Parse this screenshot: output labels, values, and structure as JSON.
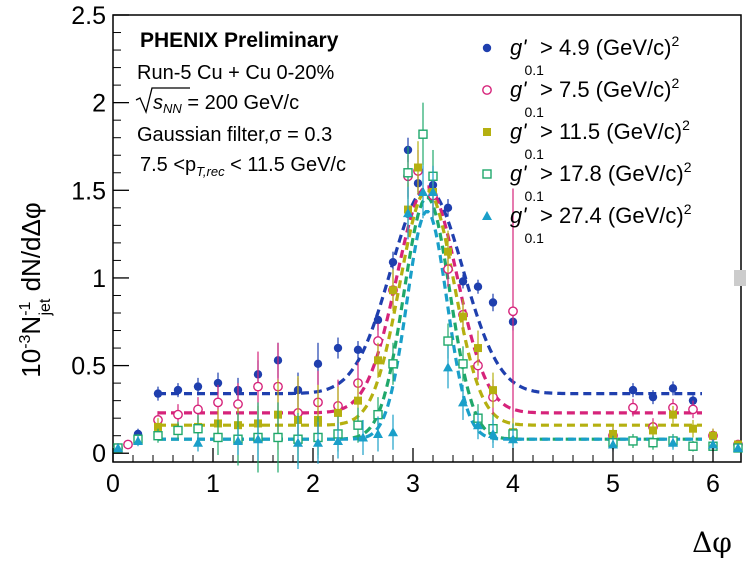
{
  "chart_data": {
    "type": "scatter",
    "ylabel": "10^-3 N_jet^-1 dN/dΔφ",
    "xlabel": "Δφ",
    "xlim": [
      0,
      6.28
    ],
    "ylim": [
      -0.05,
      2.5
    ],
    "x_ticks": [
      "0",
      "1",
      "2",
      "3",
      "4",
      "5",
      "6"
    ],
    "y_ticks": [
      "0",
      "0.5",
      "1",
      "1.5",
      "2",
      "2.5"
    ],
    "grid": false,
    "legend_position": "top-right",
    "annotations": {
      "title": "PHENIX Preliminary",
      "title_color": "#cc1a80",
      "line1": "Run-5 Cu + Cu 0-20%",
      "line2_sqrt": "s",
      "line2_sub": "NN",
      "line2_rest": " = 200 GeV/c",
      "line3": "Gaussian filter,σ = 0.3",
      "line4_pre": "7.5 <p",
      "line4_sub": "T,rec",
      "line4_post": " < 11.5 GeV/c"
    },
    "series": [
      {
        "name": "g'_0.1 > 4.9 (GeV/c)^2",
        "legend_g": "g",
        "legend_sub": "0.1",
        "legend_rest": " > 4.9 (GeV/c)",
        "legend_sup": "2",
        "color": "#1f3fae",
        "marker": "circle-filled",
        "x": [
          0.05,
          0.15,
          0.25,
          0.45,
          0.65,
          0.85,
          1.05,
          1.25,
          1.45,
          1.65,
          1.85,
          2.05,
          2.25,
          2.45,
          2.65,
          2.8,
          2.95,
          3.05,
          3.2,
          3.35,
          3.5,
          3.65,
          3.8,
          4.0,
          5.0,
          5.2,
          5.4,
          5.6,
          5.8,
          6.0,
          6.25
        ],
        "y": [
          0.03,
          0.05,
          0.11,
          0.34,
          0.36,
          0.38,
          0.4,
          0.36,
          0.45,
          0.53,
          0.36,
          0.51,
          0.6,
          0.59,
          0.76,
          1.09,
          1.73,
          1.54,
          1.53,
          1.4,
          0.98,
          0.95,
          0.86,
          0.75,
          0.1,
          0.36,
          0.32,
          0.37,
          0.3,
          0.1,
          0.05
        ],
        "err": [
          0.02,
          0.02,
          0.03,
          0.04,
          0.04,
          0.05,
          0.06,
          0.07,
          0.08,
          0.1,
          0.1,
          0.12,
          0.06,
          0.05,
          0.06,
          0.06,
          0.07,
          0.06,
          0.06,
          0.05,
          0.04,
          0.04,
          0.05,
          0.05,
          0.04,
          0.04,
          0.04,
          0.04,
          0.03,
          0.03,
          0.02
        ],
        "fit": {
          "base": 0.34,
          "amp": 1.17,
          "mu": 3.14,
          "sigma": 0.36
        }
      },
      {
        "name": "g'_0.1 > 7.5 (GeV/c)^2",
        "legend_g": "g",
        "legend_sub": "0.1",
        "legend_rest": " > 7.5 (GeV/c)",
        "legend_sup": "2",
        "color": "#d6237a",
        "marker": "circle-open",
        "x": [
          0.05,
          0.15,
          0.45,
          0.65,
          0.85,
          1.05,
          1.25,
          1.45,
          1.65,
          1.85,
          2.05,
          2.25,
          2.45,
          2.65,
          2.8,
          2.95,
          3.05,
          3.2,
          3.35,
          3.5,
          3.65,
          3.8,
          4.0,
          5.0,
          5.2,
          5.4,
          5.6,
          5.8,
          6.0,
          6.25
        ],
        "y": [
          0.03,
          0.05,
          0.19,
          0.22,
          0.25,
          0.29,
          0.28,
          0.38,
          0.38,
          0.23,
          0.29,
          0.27,
          0.4,
          0.64,
          0.93,
          1.58,
          1.61,
          1.47,
          1.05,
          0.79,
          0.5,
          0.32,
          0.81,
          0.1,
          0.26,
          0.15,
          0.26,
          0.25,
          0.1,
          0.05
        ],
        "err": [
          0.02,
          0.02,
          0.05,
          0.06,
          0.07,
          0.1,
          0.12,
          0.2,
          0.25,
          0.2,
          0.18,
          0.15,
          0.12,
          0.1,
          0.1,
          0.12,
          0.12,
          0.12,
          0.1,
          0.08,
          0.08,
          0.1,
          0.7,
          0.05,
          0.05,
          0.05,
          0.05,
          0.05,
          0.04,
          0.02
        ],
        "fit": {
          "base": 0.23,
          "amp": 1.29,
          "mu": 3.14,
          "sigma": 0.3
        }
      },
      {
        "name": "g'_0.1 > 11.5 (GeV/c)^2",
        "legend_g": "g",
        "legend_sub": "0.1",
        "legend_rest": " > 11.5 (GeV/c)",
        "legend_sup": "2",
        "color": "#b5b010",
        "marker": "square-filled",
        "x": [
          0.05,
          0.45,
          0.85,
          1.05,
          1.25,
          1.45,
          1.65,
          1.85,
          2.05,
          2.25,
          2.45,
          2.65,
          2.8,
          2.95,
          3.05,
          3.2,
          3.35,
          3.5,
          3.65,
          3.8,
          4.0,
          5.0,
          5.4,
          5.6,
          5.8,
          6.0,
          6.25
        ],
        "y": [
          0.03,
          0.15,
          0.15,
          0.17,
          0.16,
          0.17,
          0.22,
          0.19,
          0.19,
          0.23,
          0.3,
          0.53,
          0.93,
          1.39,
          1.63,
          1.49,
          1.15,
          0.78,
          0.6,
          0.36,
          0.12,
          0.11,
          0.13,
          0.22,
          0.14,
          0.1,
          0.05
        ],
        "err": [
          0.02,
          0.05,
          0.06,
          0.08,
          0.1,
          0.1,
          0.2,
          0.25,
          0.2,
          0.15,
          0.12,
          0.1,
          0.12,
          0.15,
          0.15,
          0.15,
          0.12,
          0.1,
          0.1,
          0.1,
          0.08,
          0.05,
          0.05,
          0.05,
          0.05,
          0.04,
          0.02
        ],
        "fit": {
          "base": 0.16,
          "amp": 1.34,
          "mu": 3.14,
          "sigma": 0.27
        }
      },
      {
        "name": "g'_0.1 > 17.8 (GeV/c)^2",
        "legend_g": "g",
        "legend_sub": "0.1",
        "legend_rest": " > 17.8 (GeV/c)",
        "legend_sup": "2",
        "color": "#1fa86b",
        "marker": "square-open",
        "x": [
          0.05,
          0.25,
          0.45,
          0.65,
          0.85,
          1.05,
          1.25,
          1.45,
          1.65,
          1.85,
          2.05,
          2.25,
          2.45,
          2.65,
          2.8,
          2.95,
          3.1,
          3.2,
          3.35,
          3.5,
          3.65,
          3.8,
          4.0,
          5.0,
          5.2,
          5.4,
          5.6,
          5.8,
          6.0,
          6.25
        ],
        "y": [
          0.03,
          0.08,
          0.1,
          0.13,
          0.14,
          0.09,
          0.08,
          0.09,
          0.09,
          0.08,
          0.09,
          0.11,
          0.16,
          0.22,
          0.51,
          1.6,
          1.82,
          1.58,
          0.64,
          0.51,
          0.2,
          0.14,
          0.11,
          0.06,
          0.07,
          0.06,
          0.07,
          0.04,
          0.04,
          0.03
        ],
        "err": [
          0.02,
          0.03,
          0.04,
          0.05,
          0.08,
          0.1,
          0.15,
          0.2,
          0.2,
          0.15,
          0.12,
          0.1,
          0.1,
          0.1,
          0.12,
          0.15,
          0.18,
          0.15,
          0.1,
          0.1,
          0.08,
          0.08,
          0.06,
          0.04,
          0.04,
          0.04,
          0.04,
          0.03,
          0.03,
          0.02
        ],
        "fit": {
          "base": 0.08,
          "amp": 1.38,
          "mu": 3.14,
          "sigma": 0.23
        }
      },
      {
        "name": "g'_0.1 > 27.4 (GeV/c)^2",
        "legend_g": "g",
        "legend_sub": "0.1",
        "legend_rest": " > 27.4 (GeV/c)",
        "legend_sup": "2",
        "color": "#1a9fc9",
        "marker": "triangle-filled",
        "x": [
          0.05,
          0.25,
          0.85,
          1.25,
          1.45,
          1.85,
          2.05,
          2.25,
          2.5,
          2.65,
          2.8,
          2.95,
          3.1,
          3.2,
          3.35,
          3.5,
          3.65,
          3.8,
          4.0,
          5.0,
          5.6,
          6.0,
          6.25
        ],
        "y": [
          0.03,
          0.07,
          0.06,
          0.07,
          0.08,
          0.06,
          0.06,
          0.07,
          0.09,
          0.11,
          0.12,
          1.37,
          1.49,
          1.49,
          0.49,
          0.29,
          0.16,
          0.11,
          0.08,
          0.05,
          0.06,
          0.05,
          0.03
        ],
        "err": [
          0.02,
          0.03,
          0.05,
          0.08,
          0.12,
          0.15,
          0.12,
          0.1,
          0.1,
          0.1,
          0.1,
          0.15,
          0.15,
          0.15,
          0.12,
          0.1,
          0.08,
          0.08,
          0.06,
          0.04,
          0.04,
          0.03,
          0.02
        ],
        "fit": {
          "base": 0.08,
          "amp": 1.3,
          "mu": 3.14,
          "sigma": 0.2
        }
      }
    ]
  }
}
